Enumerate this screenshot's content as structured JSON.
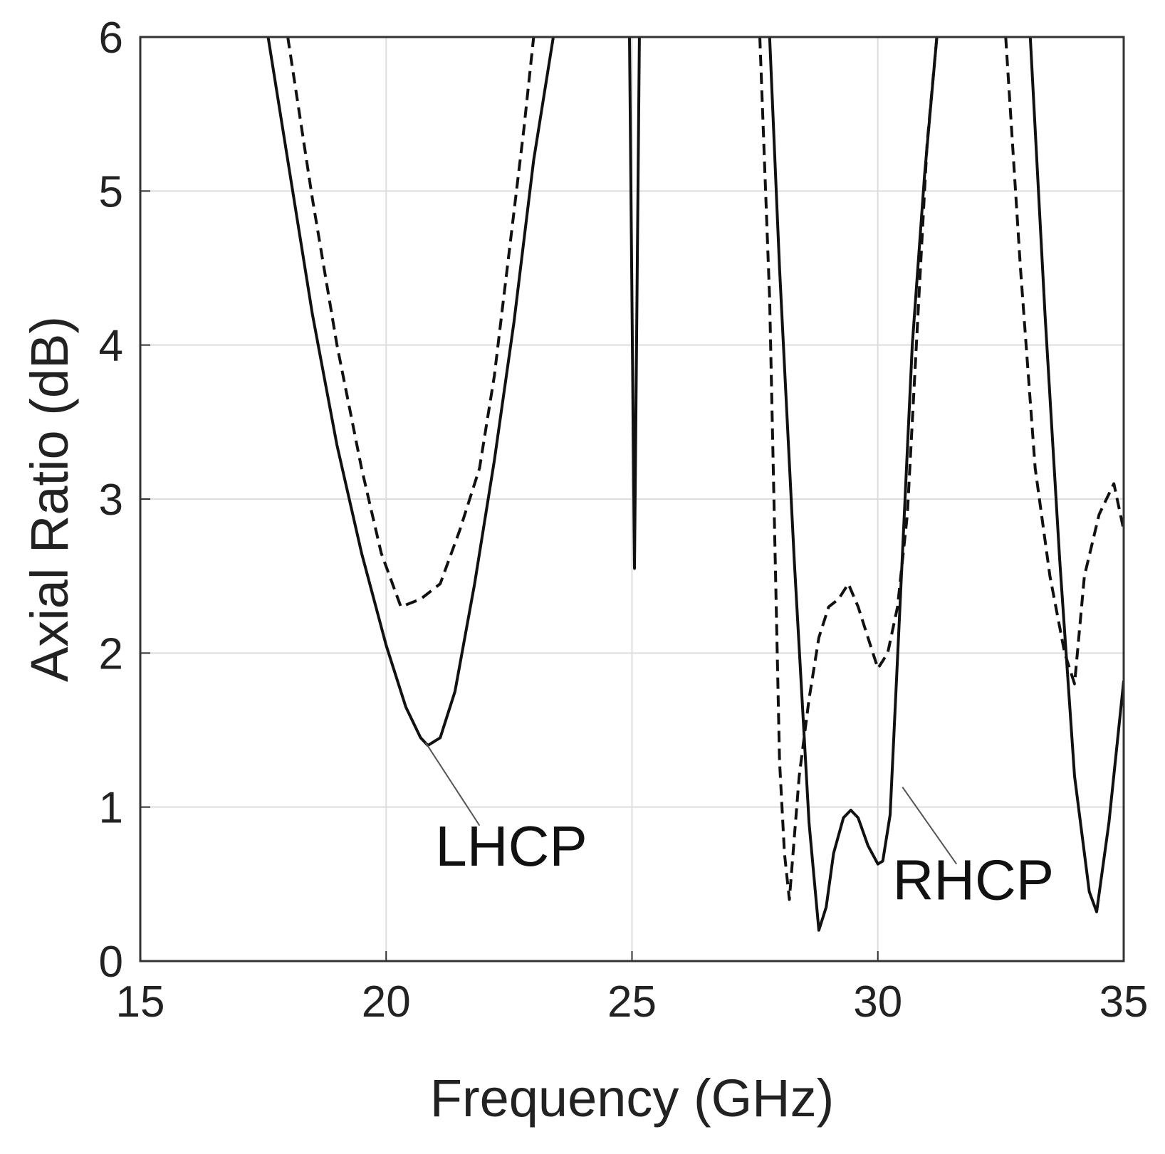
{
  "chart_data": {
    "type": "line",
    "xlabel": "Frequency (GHz)",
    "ylabel": "Axial Ratio (dB)",
    "xlim": [
      15,
      35
    ],
    "ylim": [
      0,
      6
    ],
    "xticks": [
      15,
      20,
      25,
      30,
      35
    ],
    "yticks": [
      0,
      1,
      2,
      3,
      4,
      5,
      6
    ],
    "grid": true,
    "colors": {
      "line": "#111111",
      "grid": "#dddddd",
      "axis": "#333333"
    },
    "series": [
      {
        "name": "solid",
        "style": "solid",
        "segments": [
          {
            "x": [
              17.6,
              18.0,
              18.5,
              19.0,
              19.5,
              20.0,
              20.4,
              20.7,
              20.85,
              21.1,
              21.4,
              21.8,
              22.2,
              22.6,
              23.0,
              23.4
            ],
            "y": [
              6.0,
              5.2,
              4.2,
              3.35,
              2.65,
              2.05,
              1.65,
              1.45,
              1.4,
              1.45,
              1.75,
              2.45,
              3.25,
              4.15,
              5.2,
              6.0
            ]
          },
          {
            "x": [
              24.95,
              25.05,
              25.15
            ],
            "y": [
              6.0,
              2.55,
              6.0
            ]
          },
          {
            "x": [
              27.8,
              28.0,
              28.3,
              28.6,
              28.8,
              28.95,
              29.1,
              29.3,
              29.45,
              29.6,
              29.8,
              30.0,
              30.1,
              30.25,
              30.45,
              30.7,
              30.95,
              31.2
            ],
            "y": [
              6.0,
              4.5,
              2.6,
              0.9,
              0.2,
              0.35,
              0.7,
              0.93,
              0.98,
              0.93,
              0.75,
              0.63,
              0.65,
              0.95,
              2.3,
              4.0,
              5.1,
              6.0
            ]
          },
          {
            "x": [
              33.1,
              33.4,
              33.7,
              34.0,
              34.3,
              34.45,
              34.7,
              35.0
            ],
            "y": [
              6.0,
              4.2,
              2.6,
              1.2,
              0.45,
              0.32,
              0.9,
              1.82
            ]
          }
        ]
      },
      {
        "name": "dashed",
        "style": "dashed",
        "segments": [
          {
            "x": [
              18.0,
              18.5,
              19.0,
              19.5,
              19.9,
              20.3,
              20.7,
              21.1,
              21.5,
              21.9,
              22.2,
              22.5,
              22.8,
              23.0
            ],
            "y": [
              6.0,
              4.95,
              4.0,
              3.2,
              2.65,
              2.3,
              2.35,
              2.45,
              2.8,
              3.2,
              3.8,
              4.6,
              5.4,
              6.0
            ]
          },
          {
            "x": [
              27.6,
              27.8,
              28.0,
              28.1,
              28.2,
              28.4,
              28.6,
              28.8,
              29.0,
              29.2,
              29.4,
              29.6,
              29.8,
              30.0,
              30.2,
              30.4,
              30.6,
              30.8,
              31.0,
              31.2
            ],
            "y": [
              6.0,
              4.3,
              1.3,
              0.7,
              0.4,
              1.2,
              1.7,
              2.1,
              2.3,
              2.35,
              2.45,
              2.3,
              2.1,
              1.9,
              2.0,
              2.3,
              2.9,
              4.1,
              5.3,
              6.0
            ]
          },
          {
            "x": [
              32.6,
              32.9,
              33.2,
              33.5,
              33.8,
              34.0,
              34.2,
              34.5,
              34.8,
              35.0
            ],
            "y": [
              6.0,
              4.5,
              3.2,
              2.5,
              2.0,
              1.8,
              2.5,
              2.9,
              3.1,
              2.8
            ]
          }
        ]
      }
    ],
    "annotations": [
      {
        "text": "LHCP",
        "x": 21.0,
        "y": 0.62,
        "pointer_from": [
          21.9,
          0.88
        ],
        "pointer_to": [
          20.8,
          1.42
        ]
      },
      {
        "text": "RHCP",
        "x": 30.3,
        "y": 0.4,
        "pointer_from": [
          31.6,
          0.63
        ],
        "pointer_to": [
          30.5,
          1.13
        ]
      }
    ]
  }
}
